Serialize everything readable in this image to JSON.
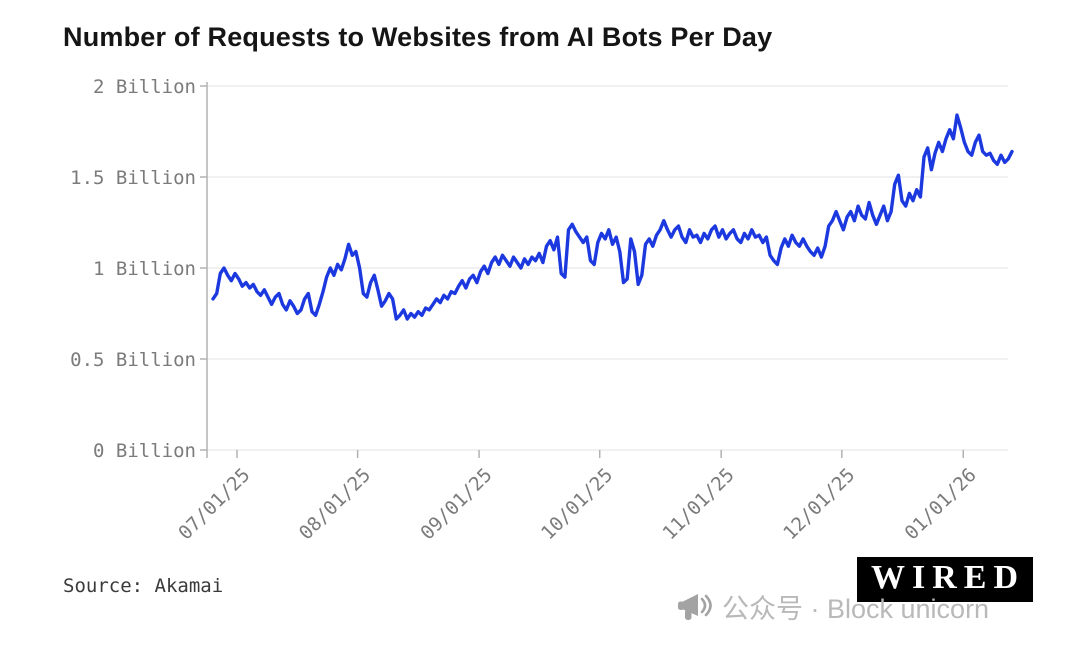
{
  "chart_data": {
    "type": "line",
    "title": "Number of Requests to Websites from AI Bots Per Day",
    "xlabel": "",
    "ylabel": "",
    "unit": "Billion requests per day",
    "ylim": [
      0,
      2
    ],
    "grid": true,
    "line_color": "#1c39e0",
    "grid_color": "#e3e3e3",
    "axis_color": "#b2b2b2",
    "tick_label_color": "#7b7b7b",
    "legend": "none",
    "y_ticks": {
      "values": [
        0,
        0.5,
        1,
        1.5,
        2
      ],
      "labels": [
        "0 Billion",
        "0.5 Billion",
        "1 Billion",
        "1.5 Billion",
        "2 Billion"
      ]
    },
    "x_ticks": {
      "labels": [
        "07/01/25",
        "08/01/25",
        "09/01/25",
        "10/01/25",
        "11/01/25",
        "12/01/25",
        "01/01/26"
      ],
      "fracs": [
        0.03,
        0.181,
        0.333,
        0.484,
        0.636,
        0.787,
        0.939
      ]
    },
    "series": [
      {
        "name": "Requests to websites from AI bots (billions)",
        "values": [
          0.83,
          0.86,
          0.97,
          1.0,
          0.96,
          0.93,
          0.97,
          0.94,
          0.9,
          0.92,
          0.89,
          0.91,
          0.87,
          0.85,
          0.88,
          0.84,
          0.8,
          0.84,
          0.86,
          0.8,
          0.77,
          0.82,
          0.79,
          0.75,
          0.77,
          0.83,
          0.86,
          0.76,
          0.74,
          0.8,
          0.87,
          0.95,
          1.0,
          0.96,
          1.02,
          0.99,
          1.05,
          1.13,
          1.07,
          1.09,
          1.0,
          0.86,
          0.84,
          0.92,
          0.96,
          0.88,
          0.79,
          0.82,
          0.86,
          0.83,
          0.72,
          0.74,
          0.77,
          0.72,
          0.75,
          0.73,
          0.76,
          0.74,
          0.78,
          0.77,
          0.8,
          0.83,
          0.81,
          0.85,
          0.83,
          0.87,
          0.86,
          0.9,
          0.93,
          0.89,
          0.94,
          0.96,
          0.92,
          0.98,
          1.01,
          0.97,
          1.03,
          1.06,
          1.02,
          1.07,
          1.04,
          1.01,
          1.06,
          1.03,
          1.0,
          1.05,
          1.02,
          1.06,
          1.04,
          1.08,
          1.03,
          1.12,
          1.15,
          1.1,
          1.17,
          0.97,
          0.95,
          1.21,
          1.24,
          1.2,
          1.17,
          1.14,
          1.17,
          1.04,
          1.02,
          1.14,
          1.19,
          1.16,
          1.21,
          1.13,
          1.17,
          1.09,
          0.92,
          0.94,
          1.16,
          1.09,
          0.91,
          0.96,
          1.13,
          1.16,
          1.12,
          1.18,
          1.21,
          1.26,
          1.21,
          1.17,
          1.21,
          1.23,
          1.17,
          1.14,
          1.21,
          1.17,
          1.18,
          1.14,
          1.19,
          1.16,
          1.21,
          1.23,
          1.17,
          1.21,
          1.16,
          1.19,
          1.21,
          1.16,
          1.14,
          1.19,
          1.16,
          1.21,
          1.17,
          1.18,
          1.14,
          1.17,
          1.07,
          1.04,
          1.02,
          1.11,
          1.16,
          1.12,
          1.18,
          1.14,
          1.12,
          1.16,
          1.12,
          1.09,
          1.07,
          1.11,
          1.06,
          1.12,
          1.23,
          1.26,
          1.31,
          1.26,
          1.21,
          1.28,
          1.31,
          1.26,
          1.34,
          1.29,
          1.27,
          1.36,
          1.29,
          1.24,
          1.29,
          1.34,
          1.26,
          1.31,
          1.46,
          1.51,
          1.37,
          1.34,
          1.41,
          1.37,
          1.43,
          1.39,
          1.61,
          1.66,
          1.54,
          1.63,
          1.69,
          1.64,
          1.71,
          1.76,
          1.71,
          1.84,
          1.77,
          1.69,
          1.64,
          1.62,
          1.69,
          1.73,
          1.64,
          1.62,
          1.63,
          1.59,
          1.57,
          1.62,
          1.58,
          1.6,
          1.64
        ]
      }
    ]
  },
  "footer": {
    "source": "Source: Akamai",
    "logo": "WIRED",
    "watermark": "公众号 · Block unicorn"
  },
  "icons": {
    "megaphone": "megaphone-icon"
  },
  "colors": {
    "background": "#ffffff",
    "title": "#151515",
    "source": "#3a3a3a",
    "watermark": "#b9b9b9",
    "logo_bg": "#000000",
    "logo_fg": "#ffffff"
  }
}
